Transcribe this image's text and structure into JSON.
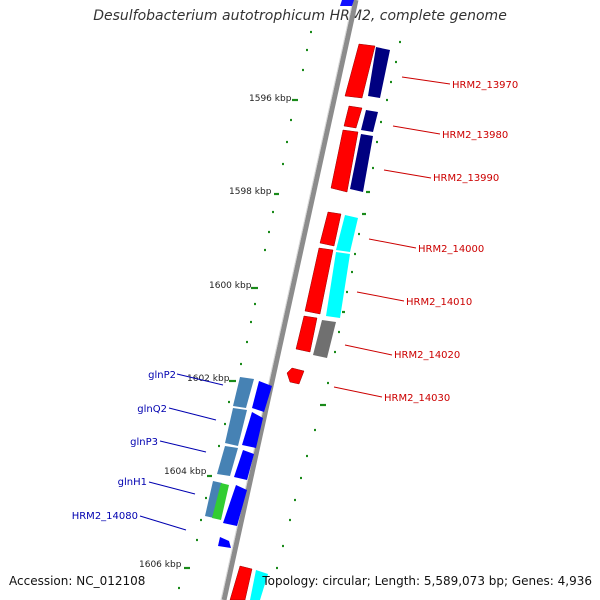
{
  "title": "Desulfobacterium autotrophicum HRM2, complete genome",
  "footer": {
    "accession": "Accession: NC_012108",
    "summary": "Topology: circular; Length: 5,589,073 bp; Genes: 4,936"
  },
  "colors": {
    "backbone": "#8c8c8c",
    "tick": "#1a8a1a",
    "red_gene": "#ff0000",
    "navy_gene": "#000080",
    "blue_gene": "#0000ff",
    "cyan_gene": "#00ffff",
    "gray_gene": "#707070",
    "steel_gene": "#4682b4",
    "green_gene": "#32cd32",
    "right_label": "#cc0000",
    "left_label": "#0000b0"
  },
  "scale_labels": [
    "1596 kbp",
    "1598 kbp",
    "1600 kbp",
    "1602 kbp",
    "1604 kbp",
    "1606 kbp"
  ],
  "right_labels": [
    "HRM2_13970",
    "HRM2_13980",
    "HRM2_13990",
    "HRM2_14000",
    "HRM2_14010",
    "HRM2_14020",
    "HRM2_14030"
  ],
  "left_labels": [
    "glnP2",
    "glnQ2",
    "glnP3",
    "glnH1",
    "HRM2_14080"
  ]
}
